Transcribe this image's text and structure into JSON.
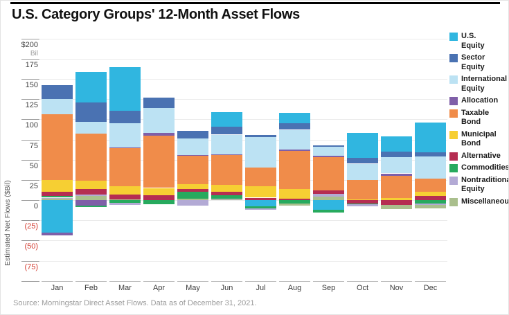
{
  "header": {
    "title": "U.S. Category Groups' 12-Month Asset Flows"
  },
  "axis": {
    "y_title": "Estimated Net Flows ($Bil)",
    "y_ticks": [
      {
        "value": 200,
        "label": "$200",
        "sub": "Bil"
      },
      {
        "value": 175,
        "label": "175"
      },
      {
        "value": 150,
        "label": "150"
      },
      {
        "value": 125,
        "label": "125"
      },
      {
        "value": 100,
        "label": "100"
      },
      {
        "value": 75,
        "label": "75"
      },
      {
        "value": 50,
        "label": "50"
      },
      {
        "value": 25,
        "label": "25"
      },
      {
        "value": 0,
        "label": "0"
      },
      {
        "value": -25,
        "label": "(25)"
      },
      {
        "value": -50,
        "label": "(50)"
      },
      {
        "value": -75,
        "label": "(75)"
      },
      {
        "value": -100,
        "label": ""
      }
    ],
    "negative_label_color": "#d23a2e"
  },
  "chart_data": {
    "type": "bar",
    "stacked": true,
    "title": "U.S. Category Groups' 12-Month Asset Flows",
    "ylabel": "Estimated Net Flows ($Bil)",
    "y_unit": "$ Billion",
    "ylim": [
      -100,
      200
    ],
    "grid": true,
    "legend_position": "right",
    "categories": [
      "Jan",
      "Feb",
      "Mar",
      "Apr",
      "May",
      "Jun",
      "Jul",
      "Aug",
      "Sep",
      "Oct",
      "Nov",
      "Dec"
    ],
    "series": [
      {
        "name": "U.S. Equity",
        "color": "#30b6e0",
        "values": [
          -40,
          38,
          54,
          0,
          0,
          18,
          -8,
          13,
          -12,
          31,
          19,
          37
        ]
      },
      {
        "name": "Sector Equity",
        "color": "#4a72b2",
        "values": [
          17,
          24,
          16,
          13,
          10,
          10,
          3,
          8,
          2,
          7,
          7,
          5
        ]
      },
      {
        "name": "International Equity",
        "color": "#bce2f3",
        "values": [
          19,
          15,
          30,
          31,
          20,
          24,
          38,
          24,
          11,
          20,
          20,
          27
        ]
      },
      {
        "name": "Allocation",
        "color": "#7f5fa8",
        "values": [
          -4,
          -7,
          1,
          3,
          1,
          1,
          0,
          2,
          2,
          0,
          3,
          0
        ]
      },
      {
        "name": "Taxable Bond",
        "color": "#f08c4a",
        "values": [
          81,
          58,
          47,
          65,
          35,
          37,
          23,
          47,
          41,
          24,
          27,
          17
        ]
      },
      {
        "name": "Municipal Bond",
        "color": "#f6cf33",
        "values": [
          15,
          10,
          10,
          9,
          6,
          9,
          14,
          12,
          0,
          1,
          3,
          5
        ]
      },
      {
        "name": "Alternative",
        "color": "#b52d52",
        "values": [
          5,
          7,
          6,
          6,
          4,
          4,
          3,
          2,
          4,
          -4,
          -6,
          5
        ]
      },
      {
        "name": "Commodities",
        "color": "#27aa5e",
        "values": [
          2,
          -2,
          -3,
          -5,
          8,
          4,
          -2,
          -4,
          -3,
          -1,
          0,
          -4
        ]
      },
      {
        "name": "Nontraditional Equity",
        "color": "#b3aad5",
        "values": [
          1,
          2,
          -3,
          0,
          -7,
          1,
          -2,
          0,
          4,
          -3,
          0,
          -2
        ]
      },
      {
        "name": "Miscellaneous",
        "color": "#aabf8d",
        "values": [
          2,
          5,
          1,
          0,
          2,
          1,
          0,
          -3,
          4,
          0,
          -5,
          -4
        ]
      }
    ]
  },
  "legend": {
    "items": [
      {
        "label": "U.S.\nEquity",
        "color": "#30b6e0"
      },
      {
        "label": "Sector\nEquity",
        "color": "#4a72b2"
      },
      {
        "label": "International\nEquity",
        "color": "#bce2f3"
      },
      {
        "label": "Allocation",
        "color": "#7f5fa8"
      },
      {
        "label": "Taxable\nBond",
        "color": "#f08c4a"
      },
      {
        "label": "Municipal\nBond",
        "color": "#f6cf33"
      },
      {
        "label": "Alternative",
        "color": "#b52d52"
      },
      {
        "label": "Commodities",
        "color": "#27aa5e"
      },
      {
        "label": "Nontraditional\nEquity",
        "color": "#b3aad5"
      },
      {
        "label": "Miscellaneous",
        "color": "#aabf8d"
      }
    ]
  },
  "footer": {
    "source": "Source: Morningstar Direct Asset Flows. Data as of December 31, 2021."
  }
}
